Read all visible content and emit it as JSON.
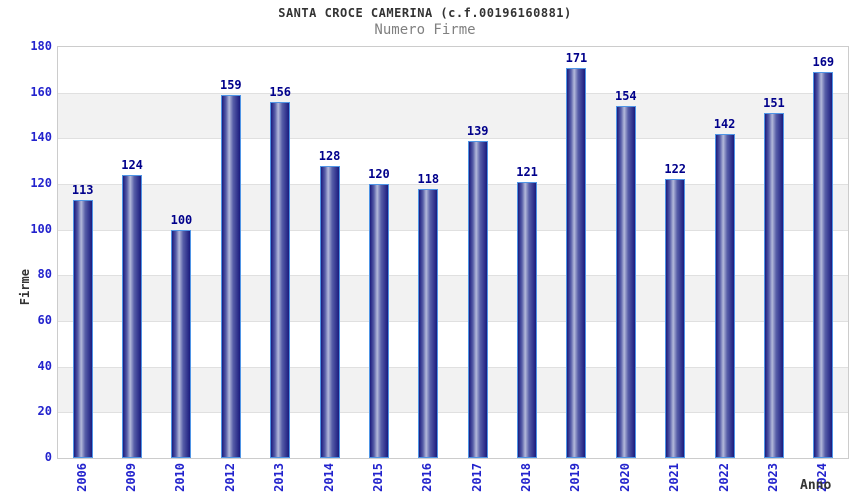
{
  "chart_data": {
    "type": "bar",
    "title": "SANTA CROCE CAMERINA (c.f.00196160881)",
    "subtitle": "Numero Firme",
    "xlabel": "Anno",
    "ylabel": "Firme",
    "categories": [
      "2006",
      "2009",
      "2010",
      "2012",
      "2013",
      "2014",
      "2015",
      "2016",
      "2017",
      "2018",
      "2019",
      "2020",
      "2021",
      "2022",
      "2023",
      "2024"
    ],
    "values": [
      113,
      124,
      100,
      159,
      156,
      128,
      120,
      118,
      139,
      121,
      171,
      154,
      122,
      142,
      151,
      169
    ],
    "ylim": [
      0,
      180
    ],
    "yticks": [
      0,
      20,
      40,
      60,
      80,
      100,
      120,
      140,
      160,
      180
    ],
    "grid": "alternating-horizontal-bands",
    "legend": "none",
    "colors": {
      "bar_dark": "#1b1b7e",
      "bar_light": "#b3b9da",
      "bar_border": "#4f95e6",
      "value_label": "#00008b",
      "tick_label": "#2323cd",
      "title": "#333333",
      "subtitle": "#808080",
      "axis_label": "#333333",
      "band": "#f2f2f2",
      "grid_line": "#e0e0e0",
      "plot_border": "#cccccc"
    }
  }
}
